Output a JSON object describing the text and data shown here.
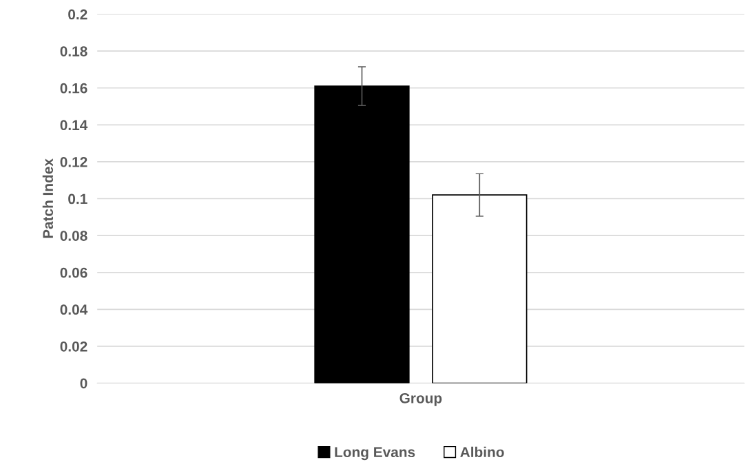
{
  "chart_data": {
    "type": "bar",
    "ylabel": "Patch Index",
    "categories": [
      "Group"
    ],
    "series": [
      {
        "name": "Long Evans",
        "color": "#000000",
        "values": [
          0.161
        ],
        "errors": [
          0.0105
        ]
      },
      {
        "name": "Albino",
        "color": "#ffffff",
        "values": [
          0.102
        ],
        "errors": [
          0.0115
        ]
      }
    ],
    "ylim": [
      0,
      0.2
    ],
    "yticks": [
      0,
      0.02,
      0.04,
      0.06,
      0.08,
      0.1,
      0.12,
      0.14,
      0.16,
      0.18,
      0.2
    ],
    "grid": "y",
    "legend": "bottom"
  }
}
